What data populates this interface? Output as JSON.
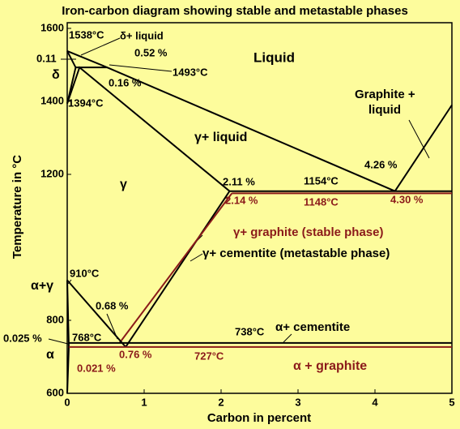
{
  "chart_data": {
    "type": "line",
    "title": "Iron-carbon diagram showing stable and metastable phases",
    "xlabel": "Carbon in percent",
    "ylabel": "Temperature in °C",
    "xlim": [
      0,
      5
    ],
    "ylim": [
      600,
      1600
    ],
    "xticks": [
      0,
      1,
      2,
      3,
      4,
      5
    ],
    "yticks": [
      600,
      800,
      1200,
      1400,
      1600
    ],
    "series": [
      {
        "color": "#000000",
        "x": [
          0,
          0.52,
          4.26
        ],
        "values": [
          1538,
          1493,
          1154
        ]
      },
      {
        "color": "#000000",
        "x": [
          0,
          0.11,
          0.52
        ],
        "values": [
          1538,
          1493,
          1493
        ]
      },
      {
        "color": "#000000",
        "x": [
          0,
          0.11
        ],
        "values": [
          1394,
          1493
        ]
      },
      {
        "color": "#000000",
        "x": [
          0,
          0.16,
          2.11
        ],
        "values": [
          1394,
          1493,
          1154
        ]
      },
      {
        "color": "#000000",
        "x": [
          2.11,
          5
        ],
        "values": [
          1154,
          1154
        ]
      },
      {
        "color": "#8b1a1a",
        "x": [
          2.14,
          5
        ],
        "values": [
          1148,
          1148
        ]
      },
      {
        "color": "#000000",
        "x": [
          4.26,
          5
        ],
        "values": [
          1154,
          1390
        ]
      },
      {
        "color": "#000000",
        "x": [
          2.11,
          0.76
        ],
        "values": [
          1154,
          727
        ]
      },
      {
        "color": "#8b1a1a",
        "x": [
          2.14,
          0.68
        ],
        "values": [
          1148,
          738
        ]
      },
      {
        "color": "#000000",
        "x": [
          0,
          0.76
        ],
        "values": [
          910,
          727
        ]
      },
      {
        "color": "#000000",
        "x": [
          0,
          0.021,
          0
        ],
        "values": [
          910,
          727,
          600
        ]
      },
      {
        "color": "#000000",
        "x": [
          0.021,
          5
        ],
        "values": [
          738,
          738
        ]
      },
      {
        "color": "#8b1a1a",
        "x": [
          0.021,
          5
        ],
        "values": [
          727,
          727
        ]
      }
    ],
    "annotations": [
      "1538°C",
      "δ+ liquid",
      "0.11",
      "0.52 %",
      "δ",
      "1493°C",
      "0.16 %",
      "Liquid",
      "1394°C",
      "Graphite +",
      "liquid",
      "γ+ liquid",
      "4.26 %",
      "2.11 %",
      "1154°C",
      "γ",
      "2.14 %",
      "1148°C",
      "4.30 %",
      "γ+ graphite (stable phase)",
      "γ+ cementite (metastable phase)",
      "α+γ",
      "910°C",
      "0.68 %",
      "0.025 %",
      "768°C",
      "738°C",
      "α+ cementite",
      "α",
      "0.76 %",
      "727°C",
      "α + graphite",
      "0.021 %"
    ]
  }
}
